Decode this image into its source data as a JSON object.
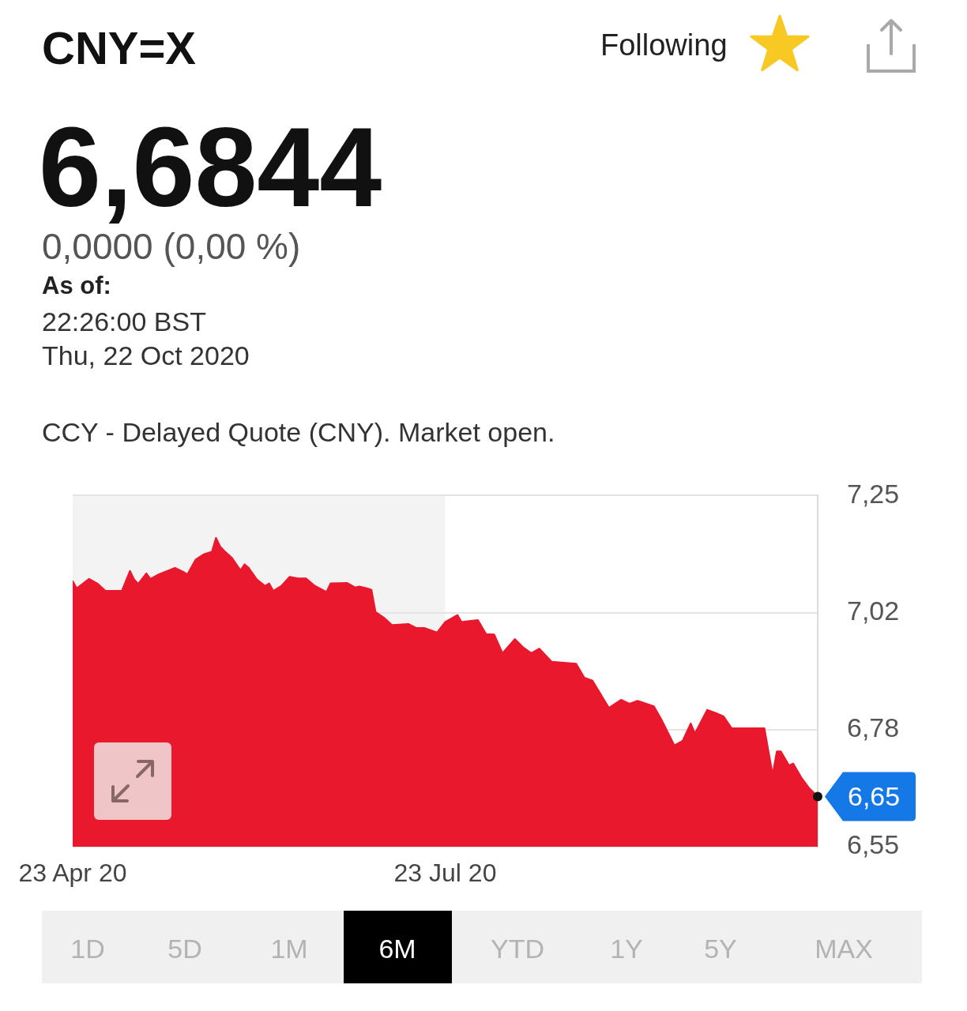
{
  "chart_data": {
    "type": "area",
    "title": "CNY=X",
    "subtitle": "6,6844",
    "annotations": [
      "Following",
      "0,0000 (0,00 %)",
      "As of:",
      "22:26:00 BST",
      "Thu, 22 Oct 2020",
      "CCY - Delayed Quote (CNY). Market open.",
      {
        "text": "6,65",
        "x": "2020-10-22",
        "y": 6.65
      },
      "1D",
      "5D",
      "1M",
      "6M",
      "YTD",
      "1Y",
      "5Y",
      "MAX"
    ],
    "x": [
      "2020-04-23",
      "2020-04-24",
      "2020-04-27",
      "2020-04-29",
      "2020-05-01",
      "2020-05-05",
      "2020-05-07",
      "2020-05-08",
      "2020-05-09",
      "2020-05-11",
      "2020-05-12",
      "2020-05-14",
      "2020-05-18",
      "2020-05-20",
      "2020-05-21",
      "2020-05-23",
      "2020-05-25",
      "2020-05-27",
      "2020-05-28",
      "2020-05-29",
      "2020-05-30",
      "2020-06-01",
      "2020-06-03",
      "2020-06-04",
      "2020-06-05",
      "2020-06-07",
      "2020-06-09",
      "2020-06-10",
      "2020-06-11",
      "2020-06-13",
      "2020-06-15",
      "2020-06-17",
      "2020-06-19",
      "2020-06-21",
      "2020-06-24",
      "2020-06-25",
      "2020-06-29",
      "2020-07-01",
      "2020-07-02",
      "2020-07-04",
      "2020-07-05",
      "2020-07-06",
      "2020-07-08",
      "2020-07-10",
      "2020-07-14",
      "2020-07-16",
      "2020-07-18",
      "2020-07-21",
      "2020-07-23",
      "2020-07-26",
      "2020-07-27",
      "2020-07-28",
      "2020-07-31",
      "2020-08-02",
      "2020-08-04",
      "2020-08-06",
      "2020-08-09",
      "2020-08-11",
      "2020-08-13",
      "2020-08-15",
      "2020-08-18",
      "2020-08-24",
      "2020-08-26",
      "2020-08-28",
      "2020-09-01",
      "2020-09-04",
      "2020-09-06",
      "2020-09-08",
      "2020-09-12",
      "2020-09-14",
      "2020-09-17",
      "2020-09-19",
      "2020-09-21",
      "2020-09-22",
      "2020-09-25",
      "2020-09-27",
      "2020-09-29",
      "2020-10-01",
      "2020-10-09",
      "2020-10-11",
      "2020-10-12",
      "2020-10-13",
      "2020-10-15",
      "2020-10-16",
      "2020-10-18",
      "2020-10-20",
      "2020-10-22"
    ],
    "values": [
      7.08,
      7.065,
      7.084,
      7.075,
      7.06,
      7.06,
      7.1,
      7.083,
      7.074,
      7.095,
      7.084,
      7.093,
      7.106,
      7.098,
      7.093,
      7.122,
      7.133,
      7.138,
      7.166,
      7.149,
      7.14,
      7.125,
      7.101,
      7.113,
      7.106,
      7.083,
      7.07,
      7.075,
      7.06,
      7.07,
      7.088,
      7.085,
      7.085,
      7.071,
      7.058,
      7.075,
      7.076,
      7.067,
      7.069,
      7.065,
      7.062,
      7.018,
      7.007,
      6.992,
      6.994,
      6.986,
      6.986,
      6.977,
      6.998,
      7.012,
      6.998,
      6.999,
      7.002,
      6.974,
      6.973,
      6.936,
      6.964,
      6.948,
      6.936,
      6.945,
      6.919,
      6.915,
      6.887,
      6.881,
      6.827,
      6.843,
      6.835,
      6.841,
      6.83,
      6.801,
      6.752,
      6.761,
      6.796,
      6.776,
      6.823,
      6.817,
      6.81,
      6.786,
      6.786,
      6.694,
      6.74,
      6.74,
      6.712,
      6.716,
      6.688,
      6.666,
      6.65
    ],
    "color": "#e9182d",
    "xlim": [
      "2020-04-23",
      "2020-10-22"
    ],
    "xticks": [
      {
        "value": "2020-04-23",
        "label": "23 Apr 20"
      },
      {
        "value": "2020-07-23",
        "label": "23 Jul 20"
      }
    ],
    "ylim": [
      6.55,
      7.25
    ],
    "yticks": [
      {
        "value": 6.55,
        "label": "6,55"
      },
      {
        "value": 6.7833,
        "label": "6,78"
      },
      {
        "value": 7.0167,
        "label": "7,02"
      },
      {
        "value": 7.25,
        "label": "7,25"
      }
    ],
    "bands": [
      {
        "axis": "x",
        "from": "2020-04-23",
        "to": "2020-07-23",
        "color": "#f3f3f4"
      }
    ],
    "grid": "y",
    "marker": "none"
  }
}
